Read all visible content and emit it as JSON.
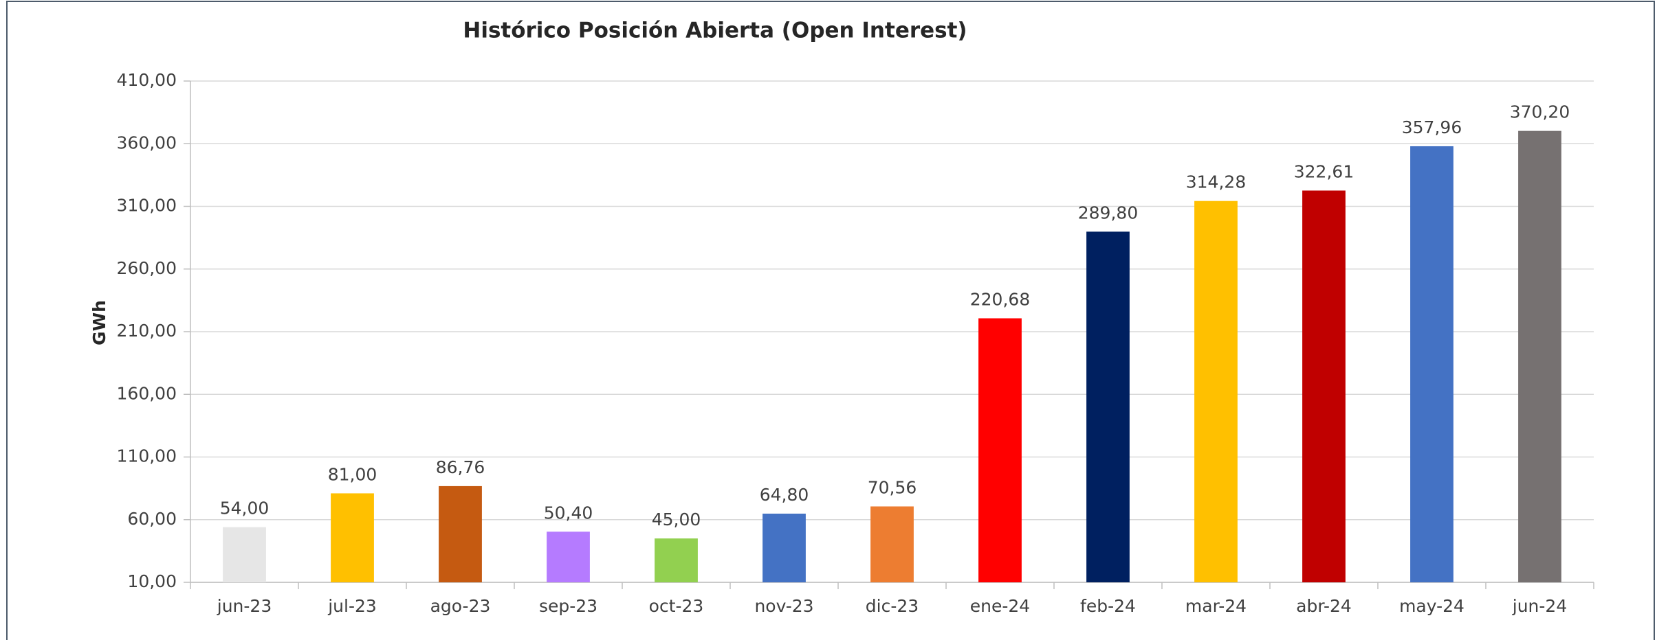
{
  "chart_data": {
    "type": "bar",
    "title": "Histórico Posición Abierta (Open Interest)",
    "y_label": "GWh",
    "categories": [
      "jun-23",
      "jul-23",
      "ago-23",
      "sep-23",
      "oct-23",
      "nov-23",
      "dic-23",
      "ene-24",
      "feb-24",
      "mar-24",
      "abr-24",
      "may-24",
      "jun-24"
    ],
    "values": [
      54.0,
      81.0,
      86.76,
      50.4,
      45.0,
      64.8,
      70.56,
      220.68,
      289.8,
      314.28,
      322.61,
      357.96,
      370.2
    ],
    "value_labels": [
      "54,00",
      "81,00",
      "86,76",
      "50,40",
      "45,00",
      "64,80",
      "70,56",
      "220,68",
      "289,80",
      "314,28",
      "322,61",
      "357,96",
      "370,20"
    ],
    "colors": [
      "#e6e6e6",
      "#ffc000",
      "#c55a11",
      "#b57bff",
      "#92d050",
      "#4472c4",
      "#ed7d31",
      "#ff0000",
      "#002060",
      "#ffc000",
      "#c00000",
      "#4472c4",
      "#767171"
    ],
    "ylim": [
      10,
      410
    ],
    "yticks": [
      {
        "value": 10,
        "label": "10,00"
      },
      {
        "value": 60,
        "label": "60,00"
      },
      {
        "value": 110,
        "label": "110,00"
      },
      {
        "value": 160,
        "label": "160,00"
      },
      {
        "value": 210,
        "label": "210,00"
      },
      {
        "value": 260,
        "label": "260,00"
      },
      {
        "value": 310,
        "label": "310,00"
      },
      {
        "value": 360,
        "label": "360,00"
      },
      {
        "value": 410,
        "label": "410,00"
      }
    ],
    "grid": true
  }
}
